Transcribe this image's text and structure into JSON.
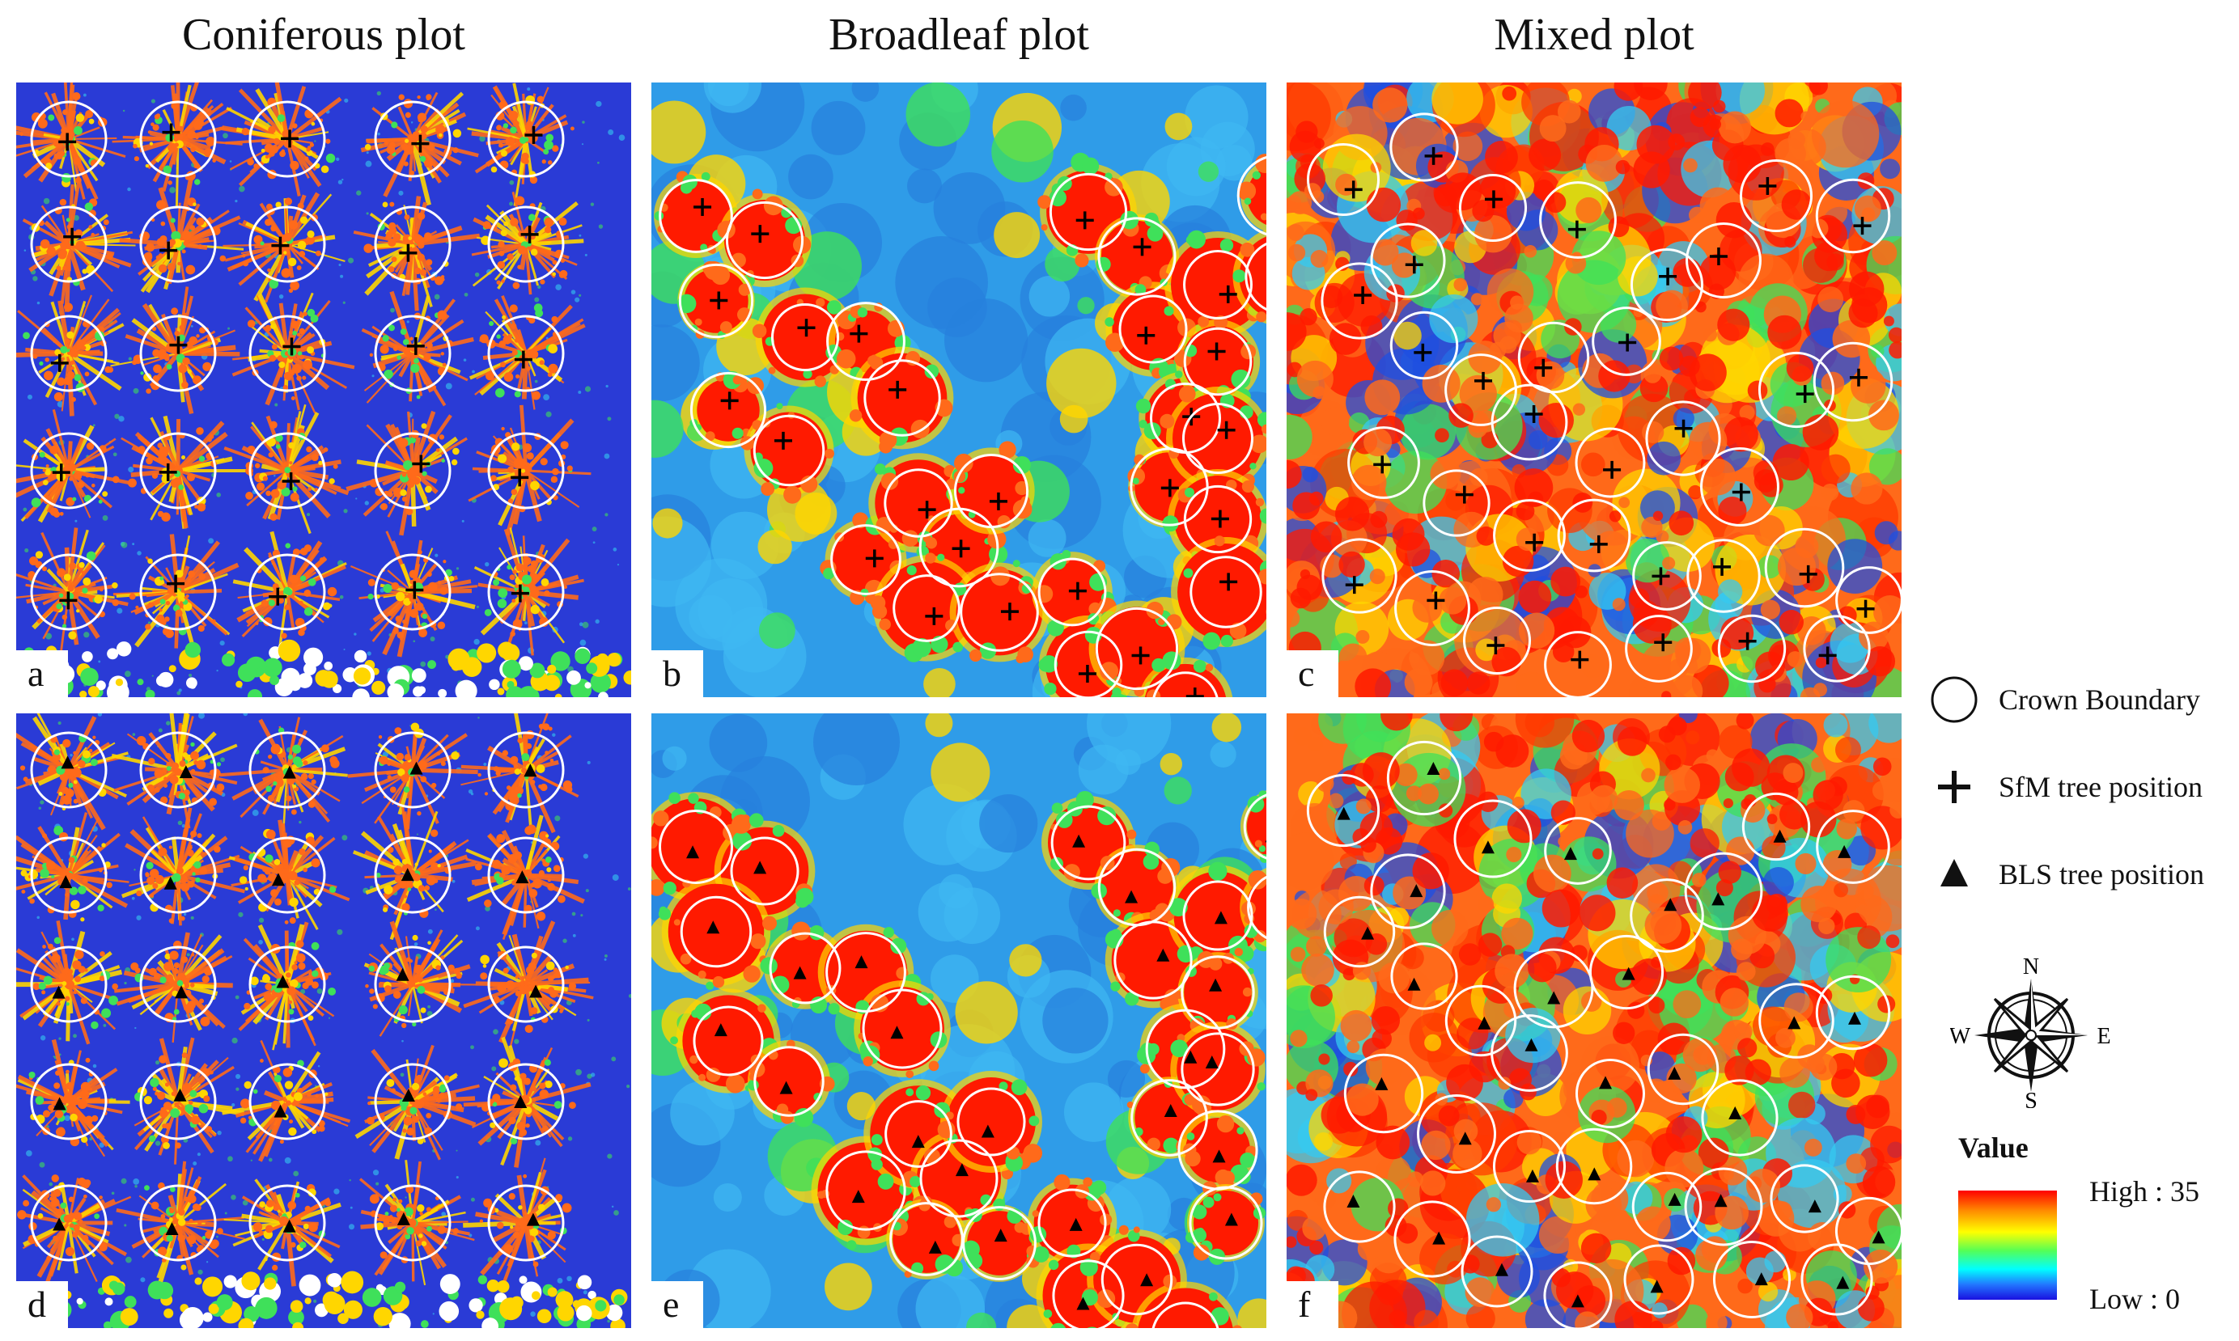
{
  "columns": [
    "Coniferous plot",
    "Broadleaf plot",
    "Mixed plot"
  ],
  "panels": [
    {
      "label": "a",
      "type": "coniferous",
      "marker": "cross"
    },
    {
      "label": "b",
      "type": "broadleaf",
      "marker": "cross"
    },
    {
      "label": "c",
      "type": "mixed",
      "marker": "cross"
    },
    {
      "label": "d",
      "type": "coniferous",
      "marker": "triangle"
    },
    {
      "label": "e",
      "type": "broadleaf",
      "marker": "triangle"
    },
    {
      "label": "f",
      "type": "mixed",
      "marker": "triangle"
    }
  ],
  "legend": {
    "crown_boundary": "Crown Boundary",
    "sfm_position": "SfM tree position",
    "bls_position": "BLS tree position",
    "compass": {
      "n": "N",
      "s": "S",
      "e": "E",
      "w": "W"
    },
    "value_title": "Value",
    "high": "High : 35",
    "low": "Low : 0"
  },
  "colors": {
    "ground_blue": "#2a3bd6",
    "canopy_red": "#ff1a00",
    "canopy_orange": "#ff6a1a",
    "canopy_yellow": "#ffd600",
    "canopy_green": "#3fe05a",
    "canopy_cyan": "#35c9f0",
    "circle": "#ffffff",
    "marker": "#000000"
  }
}
